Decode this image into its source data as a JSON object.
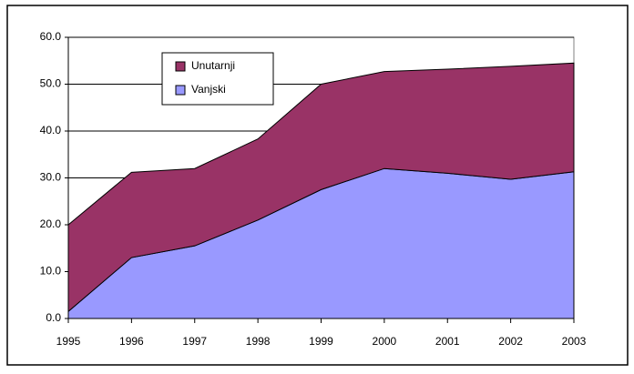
{
  "chart_data": {
    "type": "stacked_area",
    "categories": [
      "1995",
      "1996",
      "1997",
      "1998",
      "1999",
      "2000",
      "2001",
      "2002",
      "2003"
    ],
    "series": [
      {
        "name": "Vanjski",
        "color": "#9999ff",
        "values": [
          1.5,
          13,
          15.5,
          21,
          27.5,
          32,
          31,
          29.7,
          31.3
        ]
      },
      {
        "name": "Unutarnji",
        "color": "#993366",
        "values": [
          18.5,
          18.2,
          16.5,
          17.3,
          22.5,
          20.7,
          22.2,
          24.1,
          23.2
        ]
      }
    ],
    "ylim": [
      0,
      60
    ],
    "yticks": [
      {
        "value": 0,
        "label": "0.0"
      },
      {
        "value": 10,
        "label": "10.0"
      },
      {
        "value": 20,
        "label": "20.0"
      },
      {
        "value": 30,
        "label": "30.0"
      },
      {
        "value": 40,
        "label": "40.0"
      },
      {
        "value": 50,
        "label": "50.0"
      },
      {
        "value": 60,
        "label": "60.0"
      }
    ],
    "grid": true,
    "legend": "upper left"
  }
}
